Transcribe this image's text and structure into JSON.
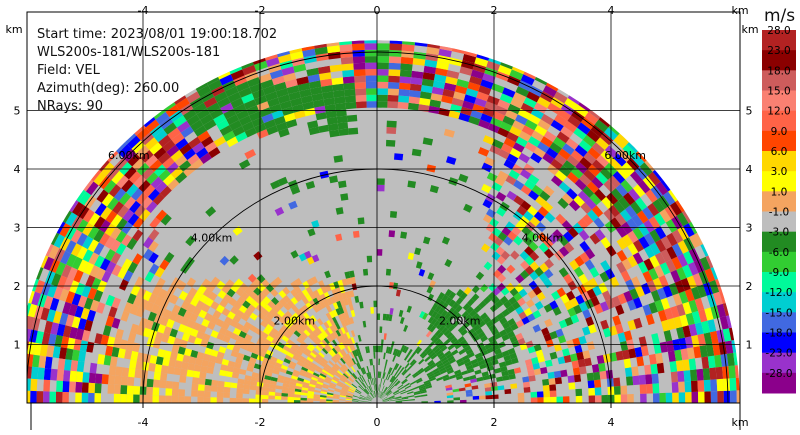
{
  "info": {
    "start_time": "Start time: 2023/08/01 19:00:18.702",
    "instrument": "WLS200s-181/WLS200s-181",
    "field": "Field: VEL",
    "azimuth": "Azimuth(deg): 260.00",
    "nrays": "NRays: 90"
  },
  "chart_data": {
    "type": "heatmap",
    "subtype": "radar-ppi-velocity",
    "title": "",
    "xlabel": "",
    "ylabel": "",
    "x_unit_label": "km",
    "y_unit_label": "km",
    "xlim": [
      -5.8,
      6.2
    ],
    "ylim": [
      0,
      5.6
    ],
    "x_ticks": [
      -4,
      -2,
      0,
      2,
      4
    ],
    "y_ticks": [
      1,
      2,
      3,
      4,
      5
    ],
    "range_rings_km": [
      2,
      4,
      6
    ],
    "range_ring_labels": [
      "2.00km",
      "4.00km",
      "6.00km"
    ],
    "max_range_km": 6.2,
    "grid": true,
    "colorbar": {
      "unit": "m/s",
      "min": -28,
      "max": 28,
      "tick_labels": [
        "28.0",
        "23.0",
        "18.0",
        "15.0",
        "12.0",
        "9.0",
        "6.0",
        "3.0",
        "1.0",
        "-1.0",
        "-3.0",
        "-6.0",
        "-9.0",
        "-12.0",
        "-15.0",
        "-18.0",
        "-23.0",
        "-28.0"
      ],
      "colors": [
        "#b22222",
        "#8b0000",
        "#cd5c5c",
        "#fa8072",
        "#ff6347",
        "#ff4500",
        "#ffd700",
        "#ffff00",
        "#f4a460",
        "#bebebe",
        "#228b22",
        "#32cd32",
        "#00fa9a",
        "#00ced1",
        "#4169e1",
        "#0000ff",
        "#9932cc",
        "#8b008b"
      ]
    }
  }
}
